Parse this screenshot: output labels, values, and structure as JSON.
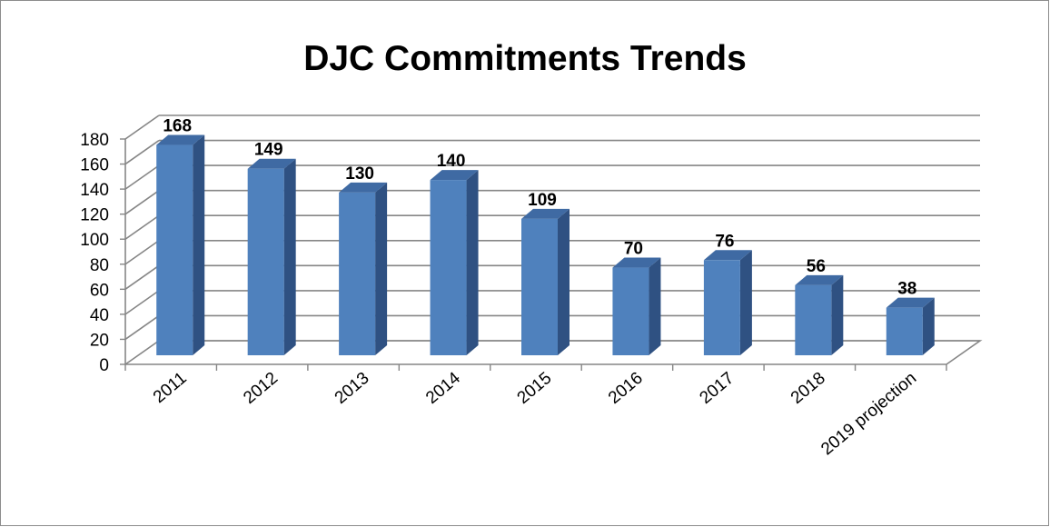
{
  "chart_data": {
    "type": "bar",
    "title": "DJC Commitments Trends",
    "categories": [
      "2011",
      "2012",
      "2013",
      "2014",
      "2015",
      "2016",
      "2017",
      "2018",
      "2019 projection"
    ],
    "values": [
      168,
      149,
      130,
      140,
      109,
      70,
      76,
      56,
      38
    ],
    "data_labels": [
      "168",
      "149",
      "130",
      "140",
      "109",
      "70",
      "76",
      "56",
      "38"
    ],
    "y_ticks": [
      "0",
      "20",
      "40",
      "60",
      "80",
      "100",
      "120",
      "140",
      "160",
      "180"
    ],
    "ylim": [
      0,
      180
    ],
    "xlabel": "",
    "ylabel": "",
    "grid": true,
    "legend": "none",
    "style": "3d-column",
    "colors": {
      "bar_front": "#4f81bd",
      "bar_side": "#2f5182",
      "bar_top": "#3f6aa3",
      "gridline": "#868686",
      "frame": "#8c8c8c"
    }
  }
}
